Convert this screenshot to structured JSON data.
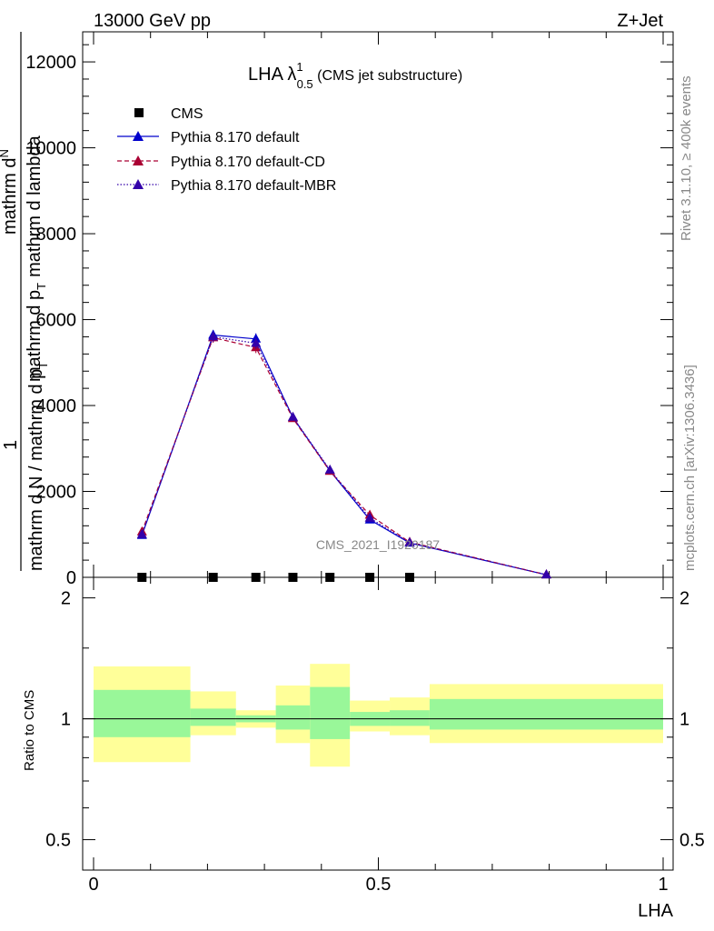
{
  "header": {
    "left": "13000 GeV pp",
    "right": "Z+Jet"
  },
  "side_labels": {
    "rivet": "Rivet 3.1.10, ≥ 400k events",
    "mcplots": "mcplots.cern.ch [arXiv:1306.3436]"
  },
  "chart_data": [
    {
      "type": "line",
      "title_main": "LHA λ",
      "title_sup": "1",
      "title_sub": "0.5",
      "title_suffix": " (CMS jet substructure)",
      "ylabel_num": "1",
      "ylabel_den": "mathrm d N / mathrm d p",
      "ylabel_frac_num": "mathrm d",
      "ylabel_frac_N": "N",
      "ylabel_frac_den": "mathrm d p",
      "ylabel_frac_rest": "mathrm d lambda",
      "ylabel_T": "T",
      "ylabel_T2": "T",
      "watermark": "CMS_2021_I1920187",
      "xlim": [
        0,
        1
      ],
      "ylim": [
        0,
        12700
      ],
      "yticks": [
        0,
        2000,
        4000,
        6000,
        8000,
        10000,
        12000
      ],
      "ytick_labels": [
        "0",
        "2000",
        "4000",
        "6000",
        "8000",
        "10000",
        "12000"
      ],
      "legend_position": "top-left",
      "series": [
        {
          "name": "CMS",
          "color": "#000000",
          "marker": "square",
          "x": [
            0.085,
            0.21,
            0.285,
            0.35,
            0.415,
            0.485,
            0.555
          ],
          "y": [
            0,
            0,
            0,
            0,
            0,
            0,
            0
          ]
        },
        {
          "name": "Pythia 8.170 default",
          "color": "#0000cc",
          "style": "solid",
          "marker": "triangle",
          "x": [
            0.085,
            0.21,
            0.285,
            0.35,
            0.415,
            0.485,
            0.555,
            0.795
          ],
          "y": [
            980,
            5640,
            5550,
            3720,
            2480,
            1340,
            800,
            60
          ],
          "yerr": [
            60,
            120,
            130,
            80,
            60,
            40,
            30,
            20
          ]
        },
        {
          "name": "Pythia 8.170 default-CD",
          "color": "#aa0033",
          "style": "dashed",
          "marker": "triangle",
          "x": [
            0.085,
            0.21,
            0.285,
            0.35,
            0.415,
            0.485,
            0.555,
            0.795
          ],
          "y": [
            1060,
            5580,
            5350,
            3700,
            2470,
            1450,
            820,
            60
          ],
          "yerr": [
            60,
            120,
            130,
            80,
            60,
            40,
            30,
            20
          ]
        },
        {
          "name": "Pythia 8.170 default-MBR",
          "color": "#3300aa",
          "style": "dotted",
          "marker": "triangle",
          "x": [
            0.085,
            0.21,
            0.285,
            0.35,
            0.415,
            0.485,
            0.555,
            0.795
          ],
          "y": [
            1000,
            5600,
            5450,
            3730,
            2500,
            1380,
            810,
            60
          ],
          "yerr": [
            60,
            120,
            130,
            80,
            60,
            40,
            30,
            20
          ]
        }
      ]
    },
    {
      "type": "area",
      "ylabel": "Ratio to CMS",
      "xlabel": "LHA",
      "xlim": [
        0,
        1
      ],
      "ylim": [
        0.42,
        2.25
      ],
      "yticks": [
        0.5,
        1,
        2
      ],
      "ytick_labels": [
        "0.5",
        "1",
        "2"
      ],
      "xticks": [
        0,
        0.5,
        1
      ],
      "xtick_labels": [
        "0",
        "0.5",
        "1"
      ],
      "bands": [
        {
          "x0": 0.0,
          "x1": 0.17,
          "g_lo": 0.9,
          "g_hi": 1.18,
          "y_lo": 0.78,
          "y_hi": 1.35
        },
        {
          "x0": 0.17,
          "x1": 0.25,
          "g_lo": 0.96,
          "g_hi": 1.06,
          "y_lo": 0.91,
          "y_hi": 1.17
        },
        {
          "x0": 0.25,
          "x1": 0.32,
          "g_lo": 0.98,
          "g_hi": 1.02,
          "y_lo": 0.95,
          "y_hi": 1.05
        },
        {
          "x0": 0.32,
          "x1": 0.38,
          "g_lo": 0.94,
          "g_hi": 1.08,
          "y_lo": 0.87,
          "y_hi": 1.21
        },
        {
          "x0": 0.38,
          "x1": 0.45,
          "g_lo": 0.89,
          "g_hi": 1.2,
          "y_lo": 0.76,
          "y_hi": 1.37
        },
        {
          "x0": 0.45,
          "x1": 0.52,
          "g_lo": 0.96,
          "g_hi": 1.04,
          "y_lo": 0.93,
          "y_hi": 1.11
        },
        {
          "x0": 0.52,
          "x1": 0.59,
          "g_lo": 0.96,
          "g_hi": 1.05,
          "y_lo": 0.91,
          "y_hi": 1.13
        },
        {
          "x0": 0.59,
          "x1": 1.0,
          "g_lo": 0.94,
          "g_hi": 1.12,
          "y_lo": 0.87,
          "y_hi": 1.22
        }
      ],
      "band_colors": {
        "green": "#99f799",
        "yellow": "#ffff99"
      },
      "ref_line": 1
    }
  ]
}
